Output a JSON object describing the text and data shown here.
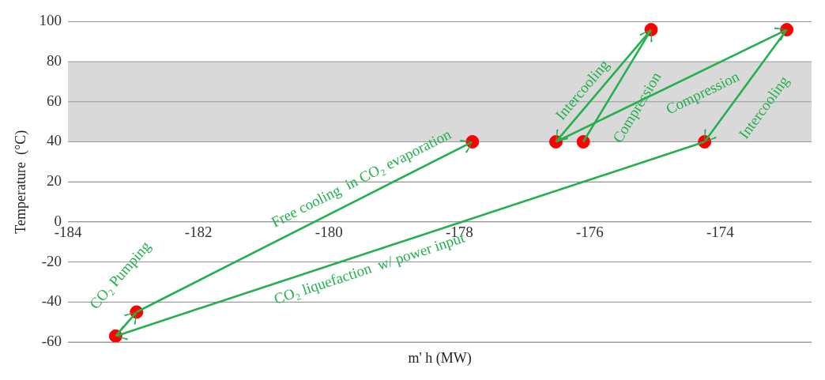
{
  "chart_data": {
    "type": "scatter",
    "xlabel": "m' h (MW)",
    "ylabel": "Temperature  (°C)",
    "xlim": [
      -184,
      -172.6
    ],
    "xticks": [
      -184,
      -182,
      -180,
      -178,
      -176,
      -174
    ],
    "ylim": [
      -60,
      100
    ],
    "yticks": [
      -60,
      -40,
      -20,
      0,
      20,
      40,
      60,
      80,
      100
    ],
    "grid": "y",
    "legend": false,
    "marker": "circle",
    "color": "#ff0000",
    "bands": [
      {
        "axis": "y",
        "from": 40,
        "to": 80,
        "color": "#d9d9d9"
      }
    ],
    "x": [
      -183.27,
      -182.95,
      -177.8,
      -176.52,
      -176.1,
      -175.06,
      -174.24,
      -172.98
    ],
    "values": [
      -57,
      -45,
      40,
      40,
      40,
      96,
      40,
      96
    ],
    "annotations": [
      "CO₂ Pumping",
      "Free cooling  in CO₂ evaporation",
      {
        "text": "Intercooling",
        "x": -176.52,
        "y": 40
      },
      "Compression",
      "Compression",
      "Intercooling",
      "CO₂ liquefaction  w/ power input"
    ]
  }
}
